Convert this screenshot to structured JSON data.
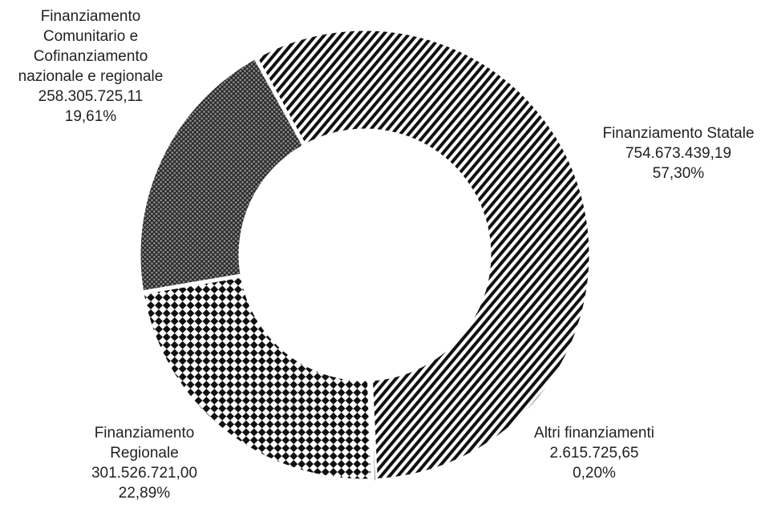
{
  "chart_data": {
    "type": "pie",
    "variant": "donut",
    "direction": "clockwise",
    "start_angle_deg": 331,
    "slices": [
      {
        "label_lines": [
          "Finanziamento Statale"
        ],
        "value_text": "754.673.439,19",
        "pct_text": "57,30%",
        "value": 754673439.19,
        "percent": 57.3,
        "pattern": "diagonal-stripes"
      },
      {
        "label_lines": [
          "Altri finanziamenti"
        ],
        "value_text": "2.615.725,65",
        "pct_text": "0,20%",
        "value": 2615725.65,
        "percent": 0.2,
        "pattern": "solid-black"
      },
      {
        "label_lines": [
          "Finanziamento",
          "Regionale"
        ],
        "value_text": "301.526.721,00",
        "pct_text": "22,89%",
        "value": 301526721.0,
        "percent": 22.89,
        "pattern": "diamond-checker"
      },
      {
        "label_lines": [
          "Finanziamento",
          "Comunitario e",
          "Cofinanziamento",
          "nazionale e regionale"
        ],
        "value_text": "258.305.725,11",
        "pct_text": "19,61%",
        "value": 258305725.11,
        "percent": 19.61,
        "pattern": "fine-crosshatch"
      }
    ],
    "title": "",
    "legend": "none"
  }
}
